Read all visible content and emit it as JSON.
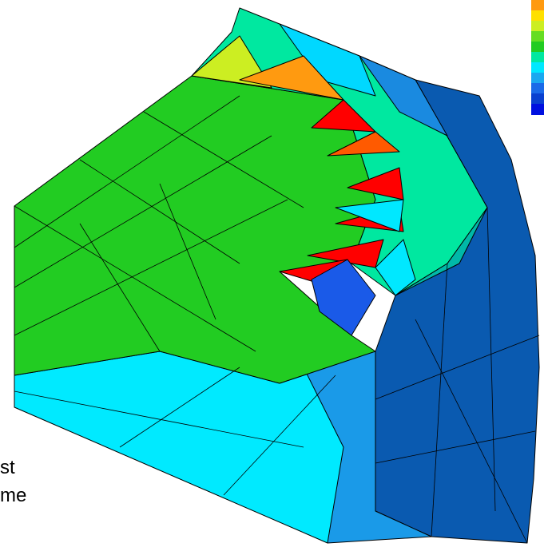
{
  "text_fragments": [
    "st",
    "me"
  ]
}
